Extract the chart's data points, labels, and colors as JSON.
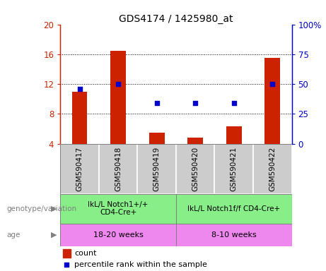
{
  "title": "GDS4174 / 1425980_at",
  "samples": [
    "GSM590417",
    "GSM590418",
    "GSM590419",
    "GSM590420",
    "GSM590421",
    "GSM590422"
  ],
  "count_values": [
    11.0,
    16.5,
    5.5,
    4.8,
    6.3,
    15.5
  ],
  "percentile_values": [
    46,
    50,
    34,
    34,
    34,
    50
  ],
  "left_ylim": [
    4,
    20
  ],
  "right_ylim": [
    0,
    100
  ],
  "left_yticks": [
    4,
    8,
    12,
    16,
    20
  ],
  "right_yticks": [
    0,
    25,
    50,
    75,
    100
  ],
  "right_yticklabels": [
    "0",
    "25",
    "50",
    "75",
    "100%"
  ],
  "bar_color": "#cc2200",
  "point_color": "#0000cc",
  "genotype_groups": [
    {
      "label": "IkL/L Notch1+/+\nCD4-Cre+",
      "start": 0,
      "end": 3,
      "color": "#88ee88"
    },
    {
      "label": "IkL/L Notch1f/f CD4-Cre+",
      "start": 3,
      "end": 6,
      "color": "#88ee88"
    }
  ],
  "age_groups": [
    {
      "label": "18-20 weeks",
      "start": 0,
      "end": 3,
      "color": "#ee88ee"
    },
    {
      "label": "8-10 weeks",
      "start": 3,
      "end": 6,
      "color": "#ee88ee"
    }
  ],
  "genotype_label": "genotype/variation",
  "age_label": "age",
  "legend_count_label": "count",
  "legend_percentile_label": "percentile rank within the sample",
  "grid_dotted_yticks": [
    8,
    12,
    16
  ],
  "sample_box_color": "#cccccc",
  "plot_bg_color": "#ffffff"
}
